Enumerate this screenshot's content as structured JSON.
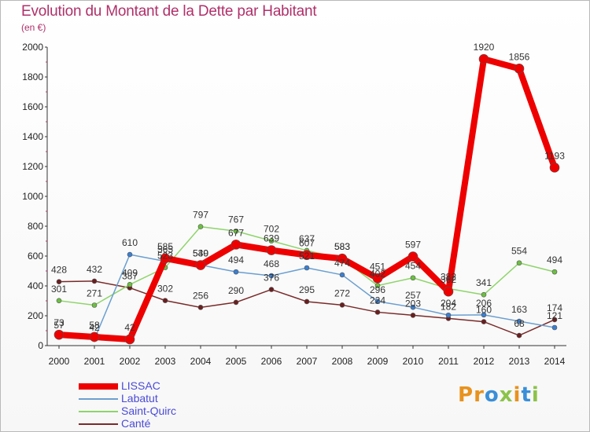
{
  "title": "Evolution du Montant de la Dette par Habitant",
  "subtitle": "(en €)",
  "logo": {
    "text": "Proxiti",
    "letters": [
      {
        "ch": "P",
        "color": "#e8921e"
      },
      {
        "ch": "r",
        "color": "#e8921e"
      },
      {
        "ch": "o",
        "color": "#3a8fd8"
      },
      {
        "ch": "x",
        "color": "#8bc34a"
      },
      {
        "ch": "i",
        "color": "#e8921e"
      },
      {
        "ch": "t",
        "color": "#3a8fd8"
      },
      {
        "ch": "i",
        "color": "#8bc34a"
      }
    ]
  },
  "chart_data": {
    "type": "line",
    "x": [
      "2000",
      "2001",
      "2002",
      "2003",
      "2004",
      "2005",
      "2006",
      "2007",
      "2008",
      "2009",
      "2010",
      "2011",
      "2012",
      "2013",
      "2014"
    ],
    "ylim": [
      0,
      2000
    ],
    "yticks": [
      0,
      200,
      400,
      600,
      800,
      1000,
      1200,
      1400,
      1600,
      1800,
      2000
    ],
    "grid": false,
    "legend_position": "bottom-left",
    "series": [
      {
        "name": "Canté",
        "color": "#7a2a2a",
        "width": 1.5,
        "marker": 3,
        "values": [
          428,
          432,
          387,
          302,
          256,
          290,
          376,
          295,
          272,
          224,
          203,
          182,
          160,
          68,
          174
        ],
        "labels": [
          "428",
          "432",
          "387",
          "302",
          "256",
          "290",
          "376",
          "295",
          "272",
          "224",
          "203",
          "182",
          "160",
          "68",
          "174"
        ]
      },
      {
        "name": "Saint-Quirc",
        "color": "#8ed46a",
        "width": 1.5,
        "marker": 3,
        "values": [
          301,
          271,
          409,
          523,
          797,
          767,
          702,
          637,
          583,
          402,
          454,
          382,
          341,
          554,
          494
        ],
        "labels": [
          "301",
          "271",
          "409",
          "523",
          "797",
          "767",
          "702",
          "637",
          "583",
          "402",
          "454",
          "382",
          "341",
          "554",
          "494"
        ]
      },
      {
        "name": "Labatut",
        "color": "#6a9fd0",
        "width": 1.5,
        "marker": 3,
        "values": [
          57,
          42,
          610,
          565,
          540,
          494,
          468,
          521,
          474,
          296,
          257,
          204,
          206,
          163,
          121
        ],
        "labels": [
          "57",
          "42",
          "610",
          "565",
          "540",
          "494",
          "468",
          "521",
          "474",
          "296",
          "257",
          "204",
          "206",
          "163",
          "121"
        ]
      },
      {
        "name": "LISSAC",
        "color": "#ee0000",
        "width": 8,
        "marker": 6,
        "values": [
          73,
          58,
          42,
          585,
          539,
          677,
          639,
          607,
          583,
          451,
          597,
          362,
          1920,
          1856,
          1193
        ],
        "labels": [
          "73",
          "58",
          "42",
          "585",
          "539",
          "677",
          "639",
          "607",
          "583",
          "451",
          "597",
          "362",
          "1920",
          "1856",
          "1193"
        ]
      }
    ]
  }
}
